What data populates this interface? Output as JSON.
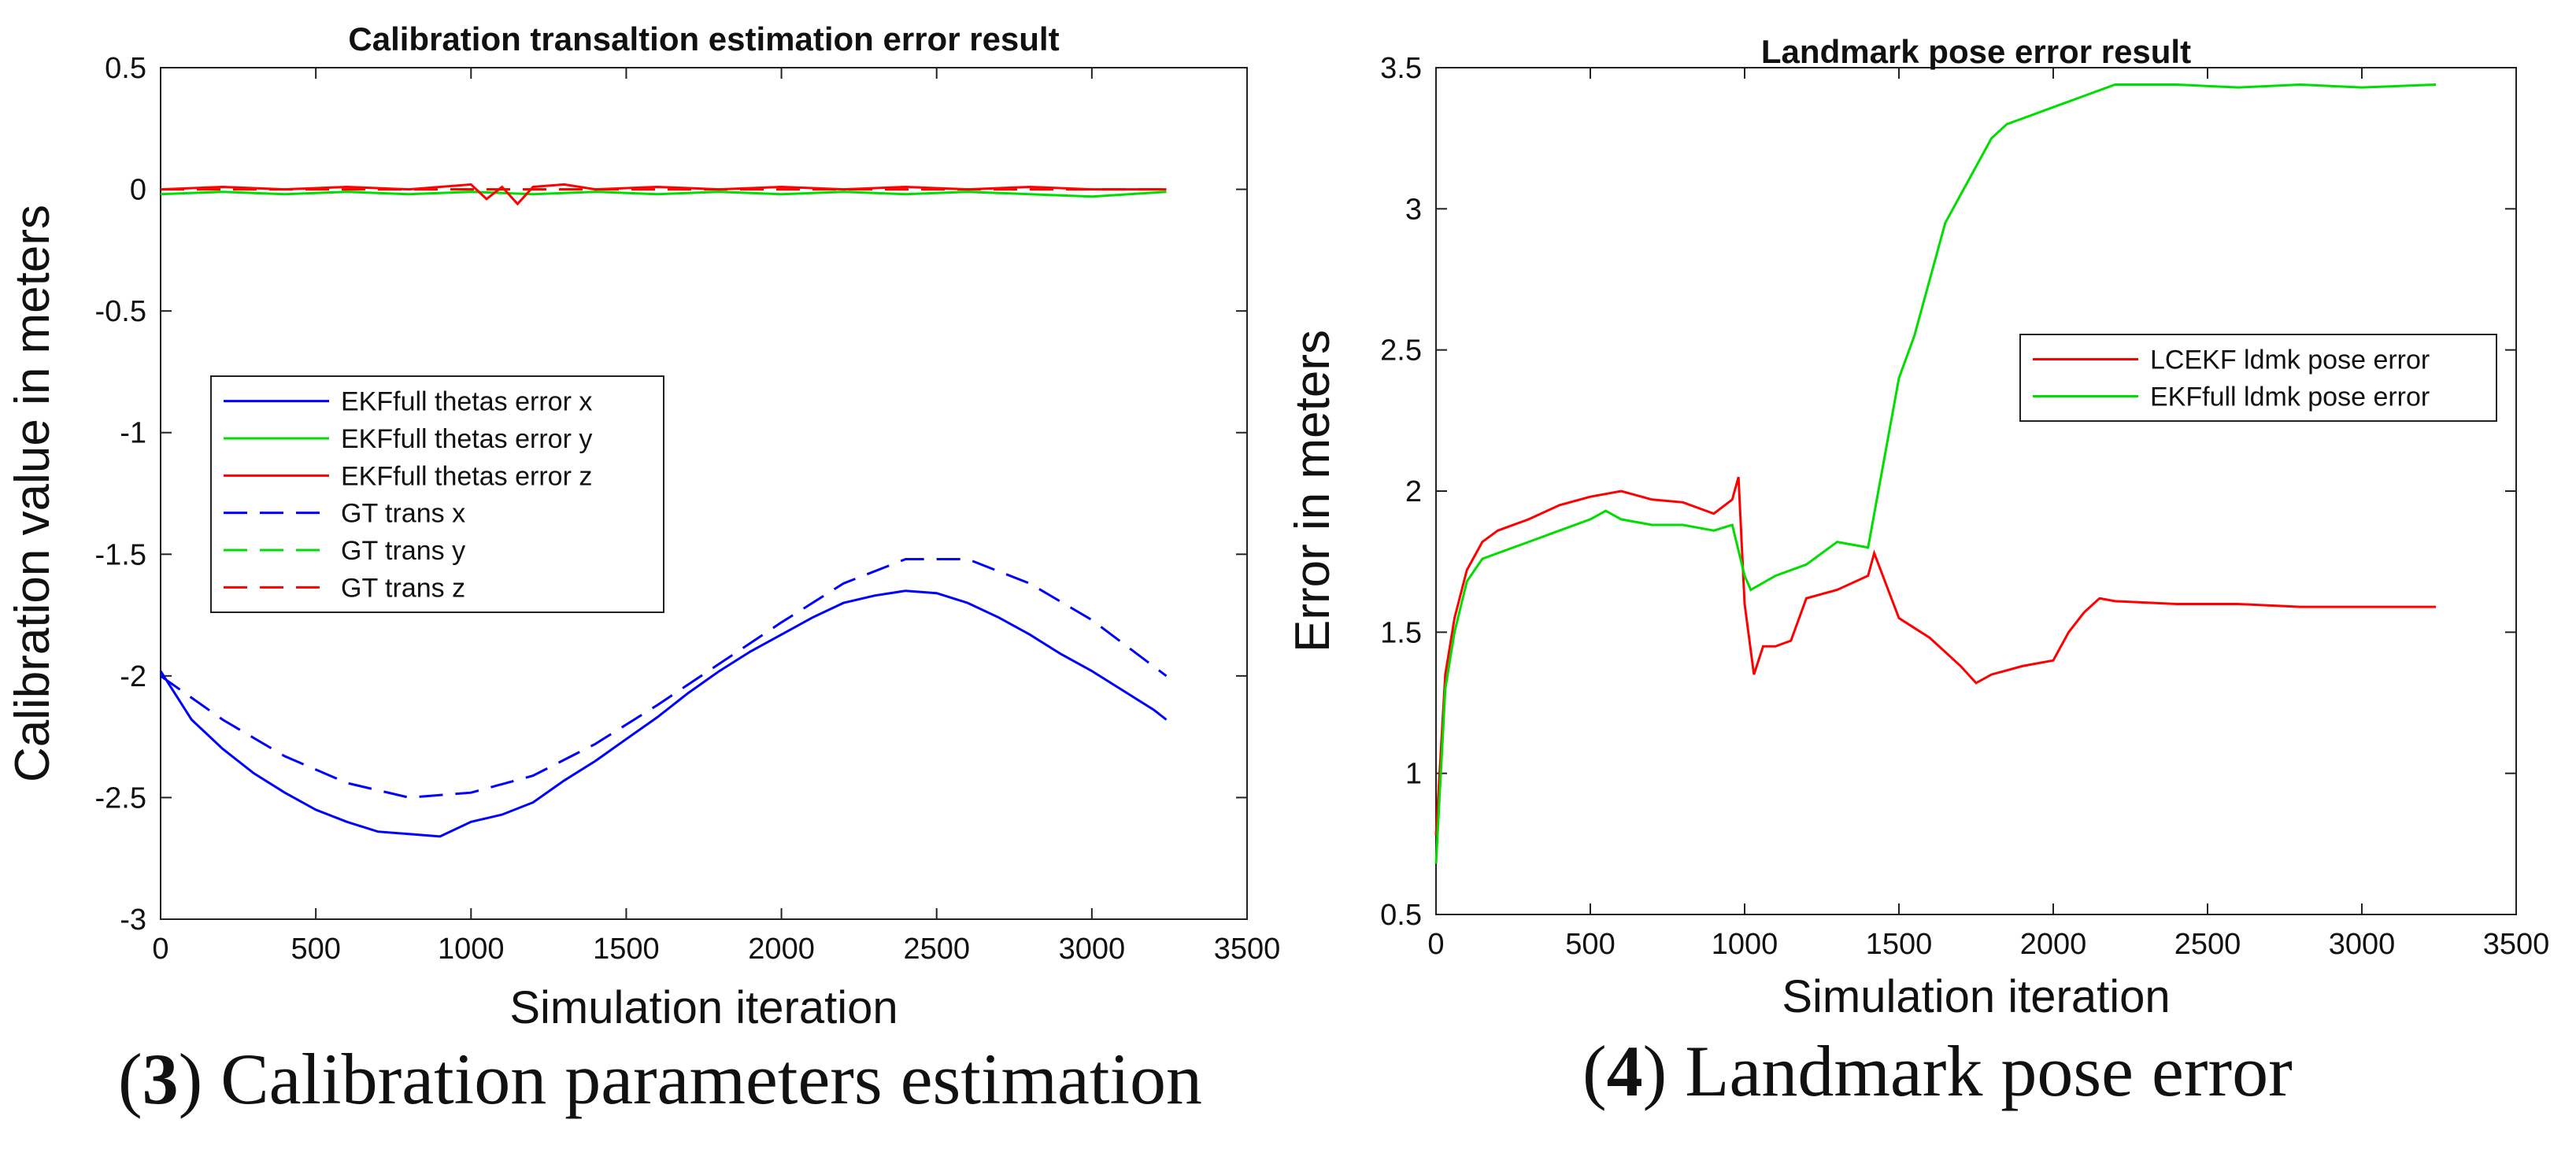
{
  "chart_data": [
    {
      "type": "line",
      "title": "Calibration transaltion estimation error result",
      "xlabel": "Simulation iteration",
      "ylabel": "Calibration value in meters",
      "xlim": [
        0,
        3500
      ],
      "ylim": [
        -3,
        0.5
      ],
      "xticks": [
        "0",
        "500",
        "1000",
        "1500",
        "2000",
        "2500",
        "3000",
        "3500"
      ],
      "yticks": [
        "-3",
        "-2.5",
        "-2",
        "-1.5",
        "-1",
        "-0.5",
        "0",
        "0.5"
      ],
      "legend_position": "center-left",
      "series": [
        {
          "name": "EKFfull thetas error x",
          "color": "#0000ff",
          "style": "solid",
          "x": [
            0,
            100,
            200,
            300,
            400,
            500,
            600,
            700,
            800,
            900,
            1000,
            1100,
            1200,
            1300,
            1400,
            1500,
            1600,
            1700,
            1800,
            1900,
            2000,
            2100,
            2200,
            2300,
            2400,
            2500,
            2600,
            2700,
            2800,
            2900,
            3000,
            3100,
            3200,
            3240
          ],
          "y": [
            -1.98,
            -2.18,
            -2.3,
            -2.4,
            -2.48,
            -2.55,
            -2.6,
            -2.64,
            -2.65,
            -2.66,
            -2.6,
            -2.57,
            -2.52,
            -2.43,
            -2.35,
            -2.26,
            -2.17,
            -2.07,
            -1.98,
            -1.9,
            -1.83,
            -1.76,
            -1.7,
            -1.67,
            -1.65,
            -1.66,
            -1.7,
            -1.76,
            -1.83,
            -1.91,
            -1.98,
            -2.06,
            -2.14,
            -2.18
          ]
        },
        {
          "name": "EKFfull thetas error y",
          "color": "#00dd00",
          "style": "solid",
          "x": [
            0,
            200,
            400,
            600,
            800,
            1000,
            1200,
            1400,
            1600,
            1800,
            2000,
            2200,
            2400,
            2600,
            2800,
            3000,
            3240
          ],
          "y": [
            -0.02,
            -0.01,
            -0.02,
            -0.01,
            -0.02,
            -0.01,
            -0.02,
            -0.01,
            -0.02,
            -0.01,
            -0.02,
            -0.01,
            -0.02,
            -0.01,
            -0.02,
            -0.03,
            -0.01
          ]
        },
        {
          "name": "EKFfull thetas error z",
          "color": "#ff0000",
          "style": "solid",
          "x": [
            0,
            200,
            400,
            600,
            800,
            1000,
            1050,
            1100,
            1150,
            1200,
            1300,
            1400,
            1600,
            1800,
            2000,
            2200,
            2400,
            2600,
            2800,
            3000,
            3240
          ],
          "y": [
            0.0,
            0.01,
            0.0,
            0.01,
            0.0,
            0.02,
            -0.04,
            0.01,
            -0.06,
            0.01,
            0.02,
            0.0,
            0.01,
            0.0,
            0.01,
            0.0,
            0.01,
            0.0,
            0.01,
            0.0,
            0.0
          ]
        },
        {
          "name": "GT trans x",
          "color": "#0000ff",
          "style": "dashed",
          "x": [
            0,
            200,
            400,
            600,
            800,
            1000,
            1200,
            1400,
            1600,
            1800,
            2000,
            2200,
            2400,
            2600,
            2800,
            3000,
            3240
          ],
          "y": [
            -2.0,
            -2.18,
            -2.33,
            -2.44,
            -2.5,
            -2.48,
            -2.41,
            -2.28,
            -2.12,
            -1.95,
            -1.78,
            -1.62,
            -1.52,
            -1.52,
            -1.62,
            -1.77,
            -2.0
          ]
        },
        {
          "name": "GT trans y",
          "color": "#00dd00",
          "style": "dashed",
          "x": [
            0,
            3240
          ],
          "y": [
            0.0,
            0.0
          ]
        },
        {
          "name": "GT trans z",
          "color": "#ff0000",
          "style": "dashed",
          "x": [
            0,
            3240
          ],
          "y": [
            0.0,
            0.0
          ]
        }
      ]
    },
    {
      "type": "line",
      "title": "Landmark pose error result",
      "xlabel": "Simulation iteration",
      "ylabel": "Error in meters",
      "xlim": [
        0,
        3500
      ],
      "ylim": [
        0.5,
        3.5
      ],
      "xticks": [
        "0",
        "500",
        "1000",
        "1500",
        "2000",
        "2500",
        "3000",
        "3500"
      ],
      "yticks": [
        "0.5",
        "1",
        "1.5",
        "2",
        "2.5",
        "3",
        "3.5"
      ],
      "legend_position": "top-right",
      "series": [
        {
          "name": "LCEKF ldmk pose error",
          "color": "#ff0000",
          "style": "solid",
          "x": [
            0,
            30,
            60,
            100,
            150,
            200,
            300,
            400,
            500,
            600,
            700,
            800,
            900,
            960,
            980,
            1000,
            1030,
            1060,
            1100,
            1150,
            1200,
            1300,
            1400,
            1420,
            1500,
            1600,
            1700,
            1750,
            1800,
            1900,
            2000,
            2050,
            2100,
            2150,
            2200,
            2400,
            2600,
            2800,
            3000,
            3240
          ],
          "y": [
            0.78,
            1.35,
            1.55,
            1.72,
            1.82,
            1.86,
            1.9,
            1.95,
            1.98,
            2.0,
            1.97,
            1.96,
            1.92,
            1.97,
            2.05,
            1.6,
            1.35,
            1.45,
            1.45,
            1.47,
            1.62,
            1.65,
            1.7,
            1.78,
            1.55,
            1.48,
            1.38,
            1.32,
            1.35,
            1.38,
            1.4,
            1.5,
            1.57,
            1.62,
            1.61,
            1.6,
            1.6,
            1.59,
            1.59,
            1.59
          ]
        },
        {
          "name": "EKFfull ldmk pose error",
          "color": "#00dd00",
          "style": "solid",
          "x": [
            0,
            30,
            60,
            100,
            150,
            200,
            300,
            400,
            500,
            550,
            600,
            700,
            800,
            900,
            960,
            1000,
            1020,
            1100,
            1200,
            1300,
            1400,
            1450,
            1500,
            1550,
            1600,
            1650,
            1700,
            1750,
            1800,
            1850,
            1900,
            2000,
            2100,
            2200,
            2300,
            2400,
            2600,
            2800,
            3000,
            3240
          ],
          "y": [
            0.68,
            1.3,
            1.5,
            1.68,
            1.76,
            1.78,
            1.82,
            1.86,
            1.9,
            1.93,
            1.9,
            1.88,
            1.88,
            1.86,
            1.88,
            1.7,
            1.65,
            1.7,
            1.74,
            1.82,
            1.8,
            2.1,
            2.4,
            2.55,
            2.75,
            2.95,
            3.05,
            3.15,
            3.25,
            3.3,
            3.32,
            3.36,
            3.4,
            3.44,
            3.44,
            3.44,
            3.43,
            3.44,
            3.43,
            3.44
          ]
        }
      ]
    }
  ],
  "captions": [
    {
      "num": "3",
      "text": "Calibration parameters estimation"
    },
    {
      "num": "4",
      "text": "Landmark pose error"
    }
  ],
  "paren_open": "(",
  "paren_close": ")"
}
